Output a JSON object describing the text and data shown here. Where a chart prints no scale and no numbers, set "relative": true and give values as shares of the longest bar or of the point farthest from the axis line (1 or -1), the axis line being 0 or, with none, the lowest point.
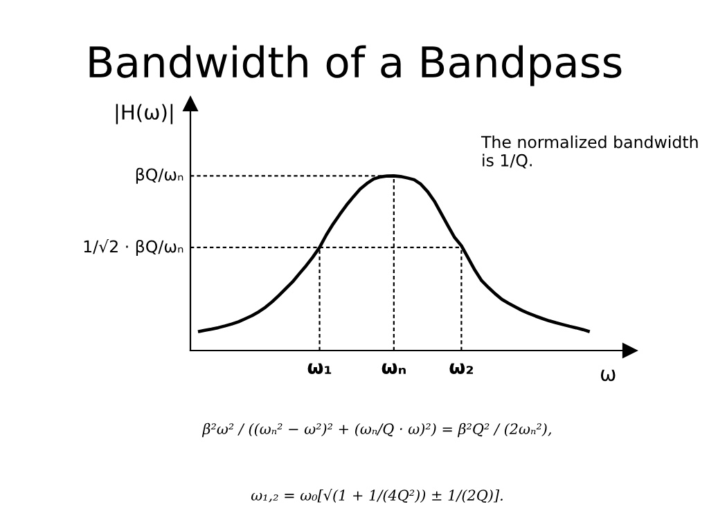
{
  "chart_data": {
    "type": "line",
    "title": "Bandwidth of a Bandpass",
    "xlabel": "ω",
    "ylabel": "|H(ω)|",
    "relative": true,
    "categories": [
      null,
      null,
      null,
      null,
      null,
      null,
      null,
      null,
      null,
      null,
      null,
      null,
      null,
      null,
      null,
      null,
      null,
      null,
      "ω₁",
      null,
      null,
      null,
      null,
      null,
      null,
      null,
      null,
      null,
      null,
      "ωₙ",
      null,
      null,
      null,
      null,
      null,
      null,
      null,
      null,
      null,
      "ω₂",
      null,
      null,
      null,
      null,
      null,
      null,
      null,
      null,
      null,
      null,
      null,
      null,
      null,
      null,
      null,
      null,
      null,
      null,
      null
    ],
    "series": [
      {
        "color": "#000000",
        "values": [
          0.108,
          0.116,
          0.123,
          0.131,
          0.141,
          0.152,
          0.165,
          0.182,
          0.2,
          0.222,
          0.248,
          0.28,
          0.316,
          0.355,
          0.393,
          0.44,
          0.485,
          0.535,
          0.59,
          0.662,
          0.724,
          0.78,
          0.833,
          0.88,
          0.924,
          0.956,
          0.982,
          0.994,
          0.999,
          1.0,
          0.996,
          0.988,
          0.978,
          0.952,
          0.91,
          0.855,
          0.785,
          0.715,
          0.647,
          0.6,
          0.53,
          0.46,
          0.4,
          0.361,
          0.325,
          0.293,
          0.27,
          0.249,
          0.229,
          0.212,
          0.197,
          0.183,
          0.17,
          0.159,
          0.149,
          0.139,
          0.13,
          0.12,
          0.108
        ]
      }
    ],
    "ref_lines": [
      {
        "axis": "y",
        "value": 1,
        "label": "βQ/ωₙ",
        "color": "#000000",
        "line_style": "dashed"
      },
      {
        "axis": "y",
        "value": 0.59,
        "label": "1/√2 · βQ/ωₙ",
        "color": "#000000",
        "line_style": "dashed"
      },
      {
        "axis": "x",
        "value": "ω₁",
        "label": null,
        "color": "#000000",
        "line_style": "dashed"
      },
      {
        "axis": "x",
        "value": "ωₙ",
        "label": null,
        "color": "#000000",
        "line_style": "dashed"
      },
      {
        "axis": "x",
        "value": "ω₂",
        "label": null,
        "color": "#000000",
        "line_style": "dashed"
      }
    ],
    "annotations": [
      "The normalized bandwidth is 1/Q.",
      "β²ω² / ((ωₙ² − ω²)² + (ωₙ/Q · ω)²) = β²Q² / (2ωₙ²),",
      "ω₁,₂ = ω₀[√(1 + 1/(4Q²)) ± 1/(2Q)]."
    ]
  }
}
